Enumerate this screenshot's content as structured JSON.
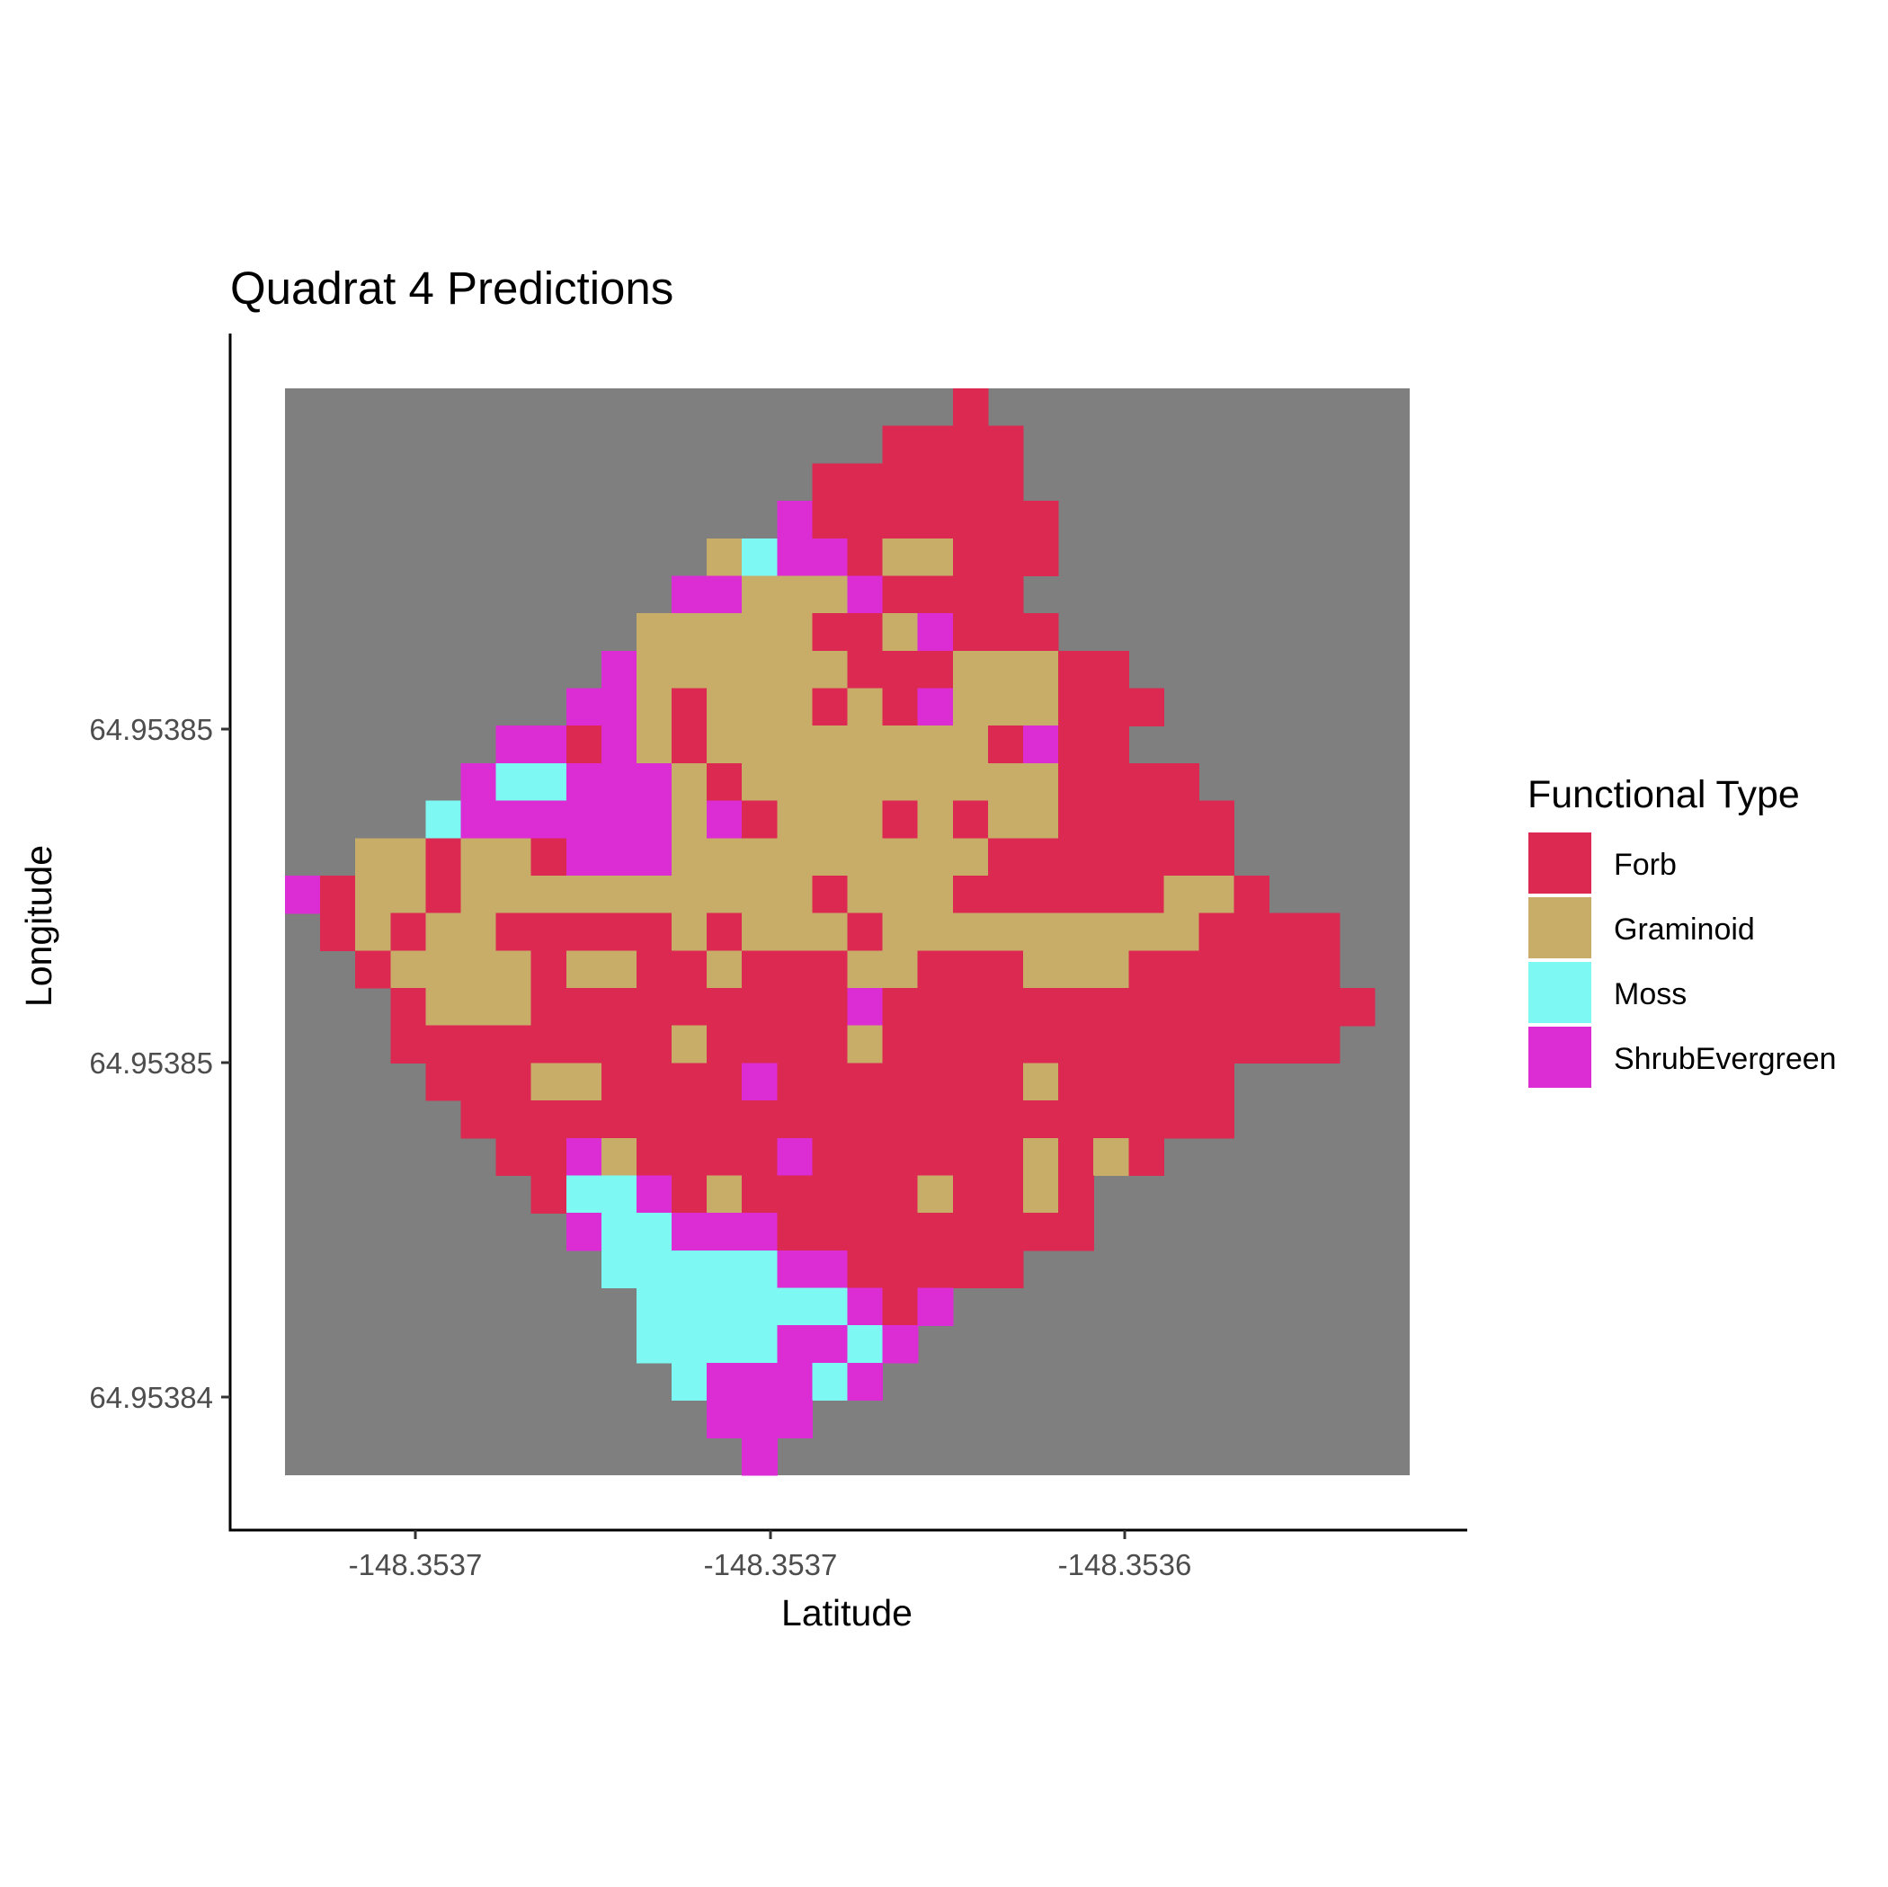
{
  "chart_data": {
    "type": "heatmap",
    "title": "Quadrat 4 Predictions",
    "xlabel": "Latitude",
    "ylabel": "Longitude",
    "x_ticks": [
      "-148.3537",
      "-148.3537",
      "-148.3536"
    ],
    "y_ticks": [
      "64.95385",
      "64.95385",
      "64.95384"
    ],
    "legend": {
      "title": "Functional Type",
      "position": "right",
      "entries": [
        {
          "code": "F",
          "label": "Forb",
          "color": "#dc2952"
        },
        {
          "code": "G",
          "label": "Graminoid",
          "color": "#c8ad69"
        },
        {
          "code": "M",
          "label": "Moss",
          "color": "#7ef8f3"
        },
        {
          "code": "S",
          "label": "ShrubEvergreen",
          "color": "#dc2cd4"
        }
      ]
    },
    "background_color": "#7f7f7f",
    "grid": false,
    "raster": [
      "...................F..........",
      ".................FFFF.........",
      "...............FFFFFF.........",
      "..............SFFFFFFF........",
      "............GMSSFGGFFF........",
      "...........SSGGGSFFFF.........",
      "..........GGGGGFFGSFFF........",
      ".........SGGGGGGFFFGGGFF......",
      "........SSGFGGGFGFSGGGFFF.....",
      "......SSFSGFGGGGGGGGFSFF......",
      ".....SMMSSSGFGGGGGGGGGFFFF....",
      "....MSSSSSSGSFGGGFGFGGFFFFF...",
      "..GGFGGFSSSGGGGGGGGGFFFFFFF...",
      "SFGGFGGGGGGGGGGFGGGFFFFFFGGF..",
      ".FGFGGFFFFFGFGGGFGGGGGGGGGFFFF.",
      "..FGGGGFGGFFGFFFGGFFFGGGFFFFFF.",
      "...FGGGFFFFFFFFFSFFFFFFFFFFFFFF",
      "...FFFFFFFFGFFFFGFFFFFFFFFFFFF.",
      "....FFFGGFFFFSFFFFFFFGFFFFF....",
      ".....FFFFFFFFFFFFFFFFFFFFFF.....",
      "......FFSGFFFFSFFFFFFGFGF.......",
      ".......FMMSFGFFFFFGFFGF.........",
      "........SMMSSSFFFFFFFFF........",
      ".........MMMMMSSFFFFF..........",
      "..........MMMMMMSFS............",
      "..........MMMMSSMS.............",
      "...........MSSSMS..............",
      "............SSS................",
      ".............S................."
    ]
  }
}
